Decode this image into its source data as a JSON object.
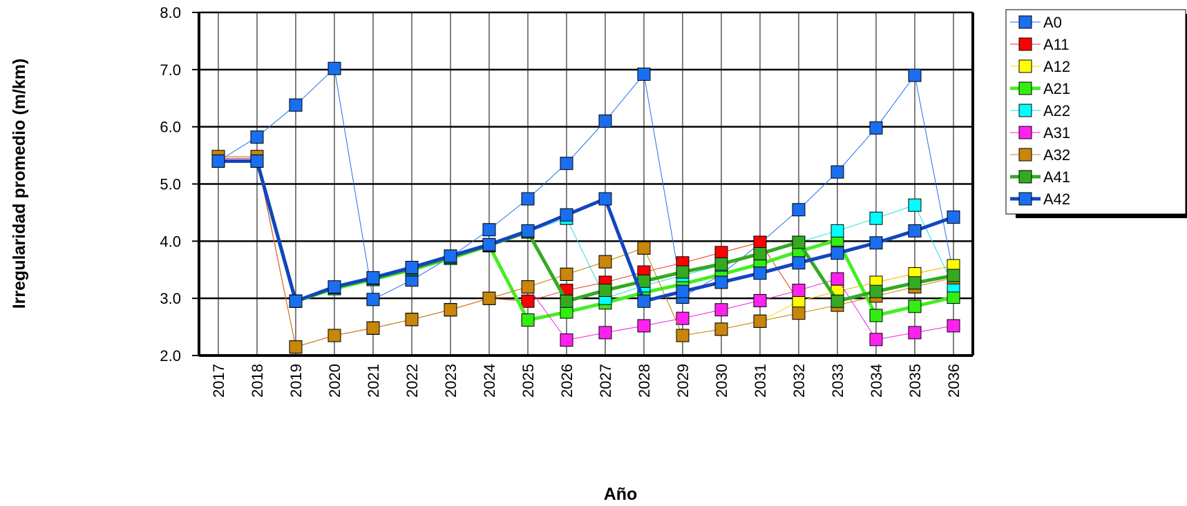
{
  "chart_data": {
    "type": "line",
    "title": "",
    "xlabel": "Año",
    "ylabel": "Irregularidad promedio (m/km)",
    "ylim": [
      2.0,
      8.0
    ],
    "yticks": [
      "2.0",
      "3.0",
      "4.0",
      "5.0",
      "6.0",
      "7.0",
      "8.0"
    ],
    "x": [
      "2017",
      "2018",
      "2019",
      "2020",
      "2021",
      "2022",
      "2023",
      "2024",
      "2025",
      "2026",
      "2027",
      "2028",
      "2029",
      "2030",
      "2031",
      "2032",
      "2033",
      "2034",
      "2035",
      "2036"
    ],
    "grid": "horizontal and vertical",
    "legend_position": "right",
    "series": [
      {
        "name": "A0",
        "color": "#1a6ef0",
        "line_color": "#1a6ef0",
        "width": 1,
        "values": [
          5.4,
          5.82,
          6.38,
          7.02,
          2.98,
          3.32,
          3.72,
          4.2,
          4.74,
          5.36,
          6.1,
          6.92,
          3.02,
          3.42,
          3.96,
          4.55,
          5.21,
          5.98,
          6.9,
          3.42
        ]
      },
      {
        "name": "A11",
        "color": "#ff0000",
        "line_color": "#e8320a",
        "width": 1,
        "values": [
          5.45,
          5.45,
          2.15,
          2.35,
          2.48,
          2.63,
          2.8,
          3.0,
          2.95,
          3.14,
          3.28,
          3.46,
          3.62,
          3.8,
          3.98,
          2.95,
          3.12,
          3.28,
          3.43,
          3.57
        ]
      },
      {
        "name": "A12",
        "color": "#ffff00",
        "line_color": "#f5d800",
        "width": 1,
        "values": [
          5.45,
          5.45,
          2.15,
          2.35,
          2.48,
          2.63,
          2.8,
          3.0,
          3.2,
          3.42,
          3.64,
          3.88,
          2.35,
          2.46,
          2.6,
          2.95,
          3.12,
          3.28,
          3.43,
          3.57
        ]
      },
      {
        "name": "A21",
        "color": "#33ee11",
        "line_color": "#44ee22",
        "width": 5,
        "values": [
          5.4,
          5.4,
          2.95,
          3.17,
          3.33,
          3.5,
          3.7,
          3.92,
          2.62,
          2.76,
          2.92,
          3.1,
          3.25,
          3.42,
          3.6,
          3.82,
          4.02,
          2.7,
          2.86,
          3.02
        ]
      },
      {
        "name": "A22",
        "color": "#00ffff",
        "line_color": "#22dddd",
        "width": 1,
        "values": [
          5.4,
          5.4,
          2.95,
          3.17,
          3.33,
          3.5,
          3.7,
          3.92,
          4.16,
          4.4,
          3.0,
          3.22,
          3.4,
          3.58,
          3.78,
          3.98,
          4.18,
          4.4,
          4.63,
          3.22
        ]
      },
      {
        "name": "A31",
        "color": "#ff22ee",
        "line_color": "#ee22dd",
        "width": 1,
        "values": [
          5.45,
          5.45,
          2.15,
          2.35,
          2.48,
          2.63,
          2.8,
          3.0,
          3.2,
          2.27,
          2.4,
          2.52,
          2.65,
          2.8,
          2.96,
          3.14,
          3.34,
          2.28,
          2.4,
          2.52
        ]
      },
      {
        "name": "A32",
        "color": "#c8860a",
        "line_color": "#c8860a",
        "width": 1,
        "values": [
          5.48,
          5.48,
          2.15,
          2.35,
          2.48,
          2.63,
          2.8,
          3.0,
          3.2,
          3.42,
          3.64,
          3.88,
          2.35,
          2.46,
          2.6,
          2.74,
          2.88,
          3.04,
          3.2,
          3.36
        ]
      },
      {
        "name": "A41",
        "color": "#33aa22",
        "line_color": "#33aa22",
        "width": 5,
        "values": [
          5.4,
          5.4,
          2.95,
          3.19,
          3.35,
          3.52,
          3.72,
          3.93,
          4.16,
          2.95,
          3.14,
          3.3,
          3.46,
          3.6,
          3.78,
          3.98,
          2.95,
          3.12,
          3.27,
          3.4
        ]
      },
      {
        "name": "A42",
        "color": "#1a6ef0",
        "line_color": "#1245c0",
        "width": 5,
        "values": [
          5.4,
          5.4,
          2.95,
          3.2,
          3.36,
          3.54,
          3.74,
          3.94,
          4.18,
          4.46,
          4.74,
          2.95,
          3.12,
          3.28,
          3.44,
          3.62,
          3.79,
          3.97,
          4.18,
          4.42
        ]
      }
    ]
  }
}
